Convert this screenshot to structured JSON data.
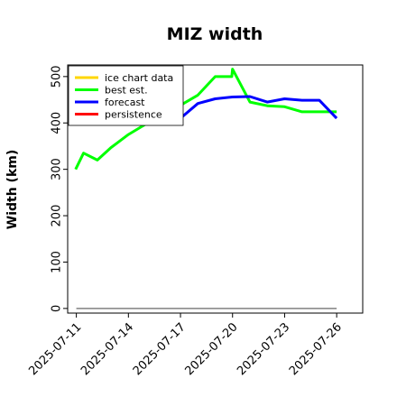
{
  "chart_data": {
    "type": "line",
    "title": "MIZ width",
    "xlabel": "",
    "ylabel": "Width (km)",
    "ylim": [
      -10,
      525
    ],
    "xlim": [
      "2025-07-10T12:00",
      "2025-07-27T12:00"
    ],
    "yticks": [
      0,
      100,
      200,
      300,
      400,
      500
    ],
    "xticks": [
      {
        "label": "2025-07-11",
        "date": "2025-07-11",
        "color": "#000000"
      },
      {
        "label": "2025-07-14",
        "date": "2025-07-14",
        "color": "#000000"
      },
      {
        "label": "2025-07-17",
        "date": "2025-07-17",
        "color": "#228b22"
      },
      {
        "label": "2025-07-20",
        "date": "2025-07-20",
        "color": "#000000"
      },
      {
        "label": "2025-07-23",
        "date": "2025-07-23",
        "color": "#000000"
      },
      {
        "label": "2025-07-26",
        "date": "2025-07-26",
        "color": "#000000"
      }
    ],
    "legend_position": "top-left",
    "legend": [
      {
        "name": "ice chart data",
        "color": "#ffd700"
      },
      {
        "name": "best est.",
        "color": "#00ff00"
      },
      {
        "name": "forecast",
        "color": "#0000ff"
      },
      {
        "name": "persistence",
        "color": "#ff0000"
      }
    ],
    "series": [
      {
        "name": "best est.",
        "color": "#00ff00",
        "x": [
          "2025-07-10T23:00",
          "2025-07-11T10:00",
          "2025-07-12T05:00",
          "2025-07-13T00:00",
          "2025-07-14T00:00",
          "2025-07-16T00:00",
          "2025-07-17T00:00",
          "2025-07-18T00:00",
          "2025-07-19T00:00",
          "2025-07-19T23:00",
          "2025-07-20T00:00",
          "2025-07-21T00:00",
          "2025-07-22T00:00",
          "2025-07-23T00:00",
          "2025-07-24T00:00",
          "2025-07-25T00:00",
          "2025-07-26T00:00"
        ],
        "values": [
          300,
          335,
          320,
          347,
          375,
          420,
          438,
          460,
          500,
          500,
          516,
          445,
          437,
          435,
          424,
          424,
          424
        ]
      },
      {
        "name": "forecast",
        "color": "#0000ff",
        "x": [
          "2025-07-17T00:00",
          "2025-07-18T00:00",
          "2025-07-19T00:00",
          "2025-07-20T00:00",
          "2025-07-21T00:00",
          "2025-07-22T00:00",
          "2025-07-23T00:00",
          "2025-07-24T00:00",
          "2025-07-25T00:00",
          "2025-07-26T00:00"
        ],
        "values": [
          410,
          442,
          452,
          456,
          457,
          445,
          452,
          449,
          449,
          410
        ]
      },
      {
        "name": "baseline",
        "color": "#808080",
        "x": [
          "2025-07-11T00:00",
          "2025-07-26T00:00"
        ],
        "values": [
          0,
          0
        ]
      }
    ]
  }
}
